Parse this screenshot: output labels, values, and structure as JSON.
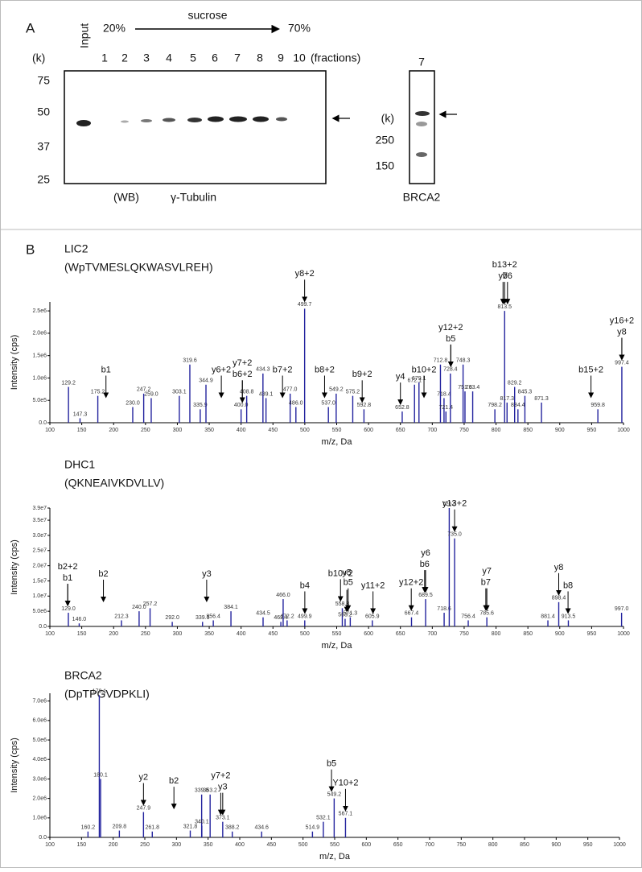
{
  "panel_a": {
    "label": "A",
    "input": "Input",
    "start": "20%",
    "gradient": "sucrose",
    "end": "70%",
    "unit": "(k)",
    "lanes": [
      "1",
      "2",
      "3",
      "4",
      "5",
      "6",
      "7",
      "8",
      "9",
      "10"
    ],
    "fractions": "(fractions)",
    "ladder": [
      "75",
      "50",
      "37",
      "25"
    ],
    "wb": "(WB)",
    "antibody": "γ-Tubulin",
    "brca2_lane": "7",
    "brca2_unit": "(k)",
    "brca2_ladder": [
      "250",
      "150"
    ],
    "brca2": "BRCA2"
  },
  "panel_b": {
    "label": "B",
    "x_label": "m/z, Da",
    "y_label": "Intensity (cps)",
    "spectra": [
      {
        "name": "LIC2",
        "sequence": "(WpTVMESLQKWASVLREH)",
        "color": "#23239e",
        "xlim": [
          100,
          1000
        ],
        "xticks": [
          100,
          150,
          200,
          250,
          300,
          350,
          400,
          450,
          500,
          550,
          600,
          650,
          700,
          750,
          800,
          850,
          900,
          950,
          1000
        ],
        "ylim": [
          0,
          2700000
        ],
        "yticks": [
          {
            "value": 0,
            "label": "0.0"
          },
          {
            "value": 500000,
            "label": "5.0e5"
          },
          {
            "value": 1000000,
            "label": "1.0e6"
          },
          {
            "value": 1500000,
            "label": "1.5e6"
          },
          {
            "value": 2000000,
            "label": "2.0e6"
          },
          {
            "value": 2500000,
            "label": "2.5e6"
          }
        ],
        "peaks": [
          {
            "mz": 129.2,
            "label": "129.2",
            "intensity": 800000
          },
          {
            "mz": 147.3,
            "label": "147.3",
            "intensity": 100000
          },
          {
            "mz": 175.2,
            "label": "175.2",
            "intensity": 600000
          },
          {
            "mz": 230.0,
            "label": "230.0",
            "intensity": 350000
          },
          {
            "mz": 247.2,
            "label": "247.2",
            "intensity": 650000
          },
          {
            "mz": 259.0,
            "label": "259.0",
            "intensity": 550000
          },
          {
            "mz": 303.1,
            "label": "303.1",
            "intensity": 600000
          },
          {
            "mz": 319.6,
            "label": "319.6",
            "intensity": 1300000
          },
          {
            "mz": 335.9,
            "label": "335.9",
            "intensity": 300000
          },
          {
            "mz": 344.9,
            "label": "344.9",
            "intensity": 850000
          },
          {
            "mz": 400.0,
            "label": "400.0",
            "intensity": 300000
          },
          {
            "mz": 408.8,
            "label": "408.8",
            "intensity": 600000
          },
          {
            "mz": 434.3,
            "label": "434.3",
            "intensity": 1100000
          },
          {
            "mz": 439.1,
            "label": "439.1",
            "intensity": 550000
          },
          {
            "mz": 477.0,
            "label": "477.0",
            "intensity": 650000
          },
          {
            "mz": 486.0,
            "label": "486.0",
            "intensity": 350000
          },
          {
            "mz": 499.7,
            "label": "499.7",
            "intensity": 2550000
          },
          {
            "mz": 537.0,
            "label": "537.0",
            "intensity": 350000
          },
          {
            "mz": 549.2,
            "label": "549.2",
            "intensity": 650000
          },
          {
            "mz": 575.2,
            "label": "575.2",
            "intensity": 600000
          },
          {
            "mz": 592.8,
            "label": "592.8",
            "intensity": 300000
          },
          {
            "mz": 652.8,
            "label": "652.8",
            "intensity": 250000
          },
          {
            "mz": 672.1,
            "label": "672.1",
            "intensity": 850000
          },
          {
            "mz": 679.1,
            "label": "679.1",
            "intensity": 900000
          },
          {
            "mz": 712.8,
            "label": "712.8",
            "intensity": 1300000
          },
          {
            "mz": 718.4,
            "label": "718.4",
            "intensity": 550000
          },
          {
            "mz": 721.4,
            "label": "721.4",
            "intensity": 250000
          },
          {
            "mz": 728.4,
            "label": "728.4",
            "intensity": 1100000
          },
          {
            "mz": 748.3,
            "label": "748.3",
            "intensity": 1300000
          },
          {
            "mz": 751.3,
            "label": "751.3",
            "intensity": 700000
          },
          {
            "mz": 763.4,
            "label": "763.4",
            "intensity": 700000
          },
          {
            "mz": 798.2,
            "label": "798.2",
            "intensity": 300000
          },
          {
            "mz": 813.5,
            "label": "813.5",
            "intensity": 2500000
          },
          {
            "mz": 817.3,
            "label": "817.3",
            "intensity": 450000
          },
          {
            "mz": 829.2,
            "label": "829.2",
            "intensity": 800000
          },
          {
            "mz": 834.4,
            "label": "834.4",
            "intensity": 300000
          },
          {
            "mz": 845.3,
            "label": "845.3",
            "intensity": 600000
          },
          {
            "mz": 871.3,
            "label": "871.3",
            "intensity": 450000
          },
          {
            "mz": 959.8,
            "label": "959.8",
            "intensity": 300000
          },
          {
            "mz": 997.4,
            "label": "997.4",
            "intensity": 1250000
          }
        ],
        "annotations": [
          {
            "label": "b1",
            "mz": 188
          },
          {
            "label": "y6+2",
            "mz": 369
          },
          {
            "label": "b6+2",
            "mz": 402
          },
          {
            "label": "y7+2",
            "mz": 402
          },
          {
            "label": "b7+2",
            "mz": 465
          },
          {
            "label": "y8+2",
            "mz": 499.7
          },
          {
            "label": "b8+2",
            "mz": 531
          },
          {
            "label": "y4",
            "mz": 650
          },
          {
            "label": "b9+2",
            "mz": 590
          },
          {
            "label": "b10+2",
            "mz": 687
          },
          {
            "label": "b5",
            "mz": 729
          },
          {
            "label": "y12+2",
            "mz": 729
          },
          {
            "label": "y7",
            "mz": 811
          },
          {
            "label": "b6",
            "mz": 818
          },
          {
            "label": "b13+2",
            "mz": 813.5
          },
          {
            "label": "b15+2",
            "mz": 949
          },
          {
            "label": "y8",
            "mz": 997.4
          },
          {
            "label": "y16+2",
            "mz": 997.4
          }
        ]
      },
      {
        "name": "DHC1",
        "sequence": "(QKNEAIVKDVLLV)",
        "color": "#23239e",
        "xlim": [
          100,
          1000
        ],
        "xticks": [
          100,
          150,
          200,
          250,
          300,
          350,
          400,
          450,
          500,
          550,
          600,
          650,
          700,
          750,
          800,
          850,
          900,
          950,
          1000
        ],
        "ylim": [
          0,
          39000000
        ],
        "yticks": [
          {
            "value": 0,
            "label": "0.0"
          },
          {
            "value": 5000000,
            "label": "5.0e6"
          },
          {
            "value": 10000000,
            "label": "1.0e7"
          },
          {
            "value": 15000000,
            "label": "1.5e7"
          },
          {
            "value": 20000000,
            "label": "2.0e7"
          },
          {
            "value": 25000000,
            "label": "2.5e7"
          },
          {
            "value": 30000000,
            "label": "3.0e7"
          },
          {
            "value": 35000000,
            "label": "3.5e7"
          },
          {
            "value": 39000000,
            "label": "3.9e7"
          }
        ],
        "peaks": [
          {
            "mz": 129.0,
            "label": "129.0",
            "intensity": 4500000
          },
          {
            "mz": 146.0,
            "label": "146.0",
            "intensity": 1000000
          },
          {
            "mz": 212.3,
            "label": "212.3",
            "intensity": 2000000
          },
          {
            "mz": 240.0,
            "label": "240.0",
            "intensity": 5000000
          },
          {
            "mz": 257.2,
            "label": "257.2",
            "intensity": 6000000
          },
          {
            "mz": 292.0,
            "label": "292.0",
            "intensity": 1500000
          },
          {
            "mz": 339.5,
            "label": "339.5",
            "intensity": 1500000
          },
          {
            "mz": 356.4,
            "label": "356.4",
            "intensity": 2000000
          },
          {
            "mz": 384.1,
            "label": "384.1",
            "intensity": 5000000
          },
          {
            "mz": 434.5,
            "label": "434.5",
            "intensity": 3000000
          },
          {
            "mz": 462.4,
            "label": "462.4",
            "intensity": 1500000
          },
          {
            "mz": 466.0,
            "label": "466.0",
            "intensity": 9000000
          },
          {
            "mz": 472.2,
            "label": "472.2",
            "intensity": 2000000
          },
          {
            "mz": 499.9,
            "label": "499.9",
            "intensity": 2000000
          },
          {
            "mz": 558.8,
            "label": "558.8",
            "intensity": 6000000
          },
          {
            "mz": 563.2,
            "label": "563.2",
            "intensity": 2500000
          },
          {
            "mz": 571.3,
            "label": "571.3",
            "intensity": 3000000
          },
          {
            "mz": 605.9,
            "label": "605.9",
            "intensity": 2000000
          },
          {
            "mz": 667.4,
            "label": "667.4",
            "intensity": 3000000
          },
          {
            "mz": 689.5,
            "label": "689.5",
            "intensity": 9000000
          },
          {
            "mz": 718.6,
            "label": "718.6",
            "intensity": 4500000
          },
          {
            "mz": 726.6,
            "label": "726.6",
            "intensity": 39000000
          },
          {
            "mz": 735.0,
            "label": "735.0",
            "intensity": 29000000
          },
          {
            "mz": 756.4,
            "label": "756.4",
            "intensity": 2000000
          },
          {
            "mz": 785.6,
            "label": "785.6",
            "intensity": 3000000
          },
          {
            "mz": 881.4,
            "label": "881.4",
            "intensity": 2000000
          },
          {
            "mz": 898.4,
            "label": "898.4",
            "intensity": 8000000
          },
          {
            "mz": 913.5,
            "label": "913.5",
            "intensity": 2000000
          },
          {
            "mz": 997.0,
            "label": "997.0",
            "intensity": 4500000
          }
        ],
        "annotations": [
          {
            "label": "b1",
            "mz": 128
          },
          {
            "label": "b2+2",
            "mz": 128
          },
          {
            "label": "b2",
            "mz": 184
          },
          {
            "label": "y3",
            "mz": 346
          },
          {
            "label": "b4",
            "mz": 500
          },
          {
            "label": "b10+2",
            "mz": 556
          },
          {
            "label": "b5",
            "mz": 568
          },
          {
            "label": "y5",
            "mz": 566
          },
          {
            "label": "y11+2",
            "mz": 607
          },
          {
            "label": "y12+2",
            "mz": 667
          },
          {
            "label": "b6",
            "mz": 688
          },
          {
            "label": "y6",
            "mz": 689.5
          },
          {
            "label": "y13+2",
            "mz": 735
          },
          {
            "label": "b7",
            "mz": 784
          },
          {
            "label": "y7",
            "mz": 785.6
          },
          {
            "label": "y8",
            "mz": 898.4
          },
          {
            "label": "b8",
            "mz": 913
          }
        ]
      },
      {
        "name": "BRCA2",
        "sequence": "(DpTPGVDPKLI)",
        "color": "#23239e",
        "xlim": [
          100,
          1000
        ],
        "xticks": [
          100,
          150,
          200,
          250,
          300,
          350,
          400,
          450,
          500,
          550,
          600,
          650,
          700,
          750,
          800,
          850,
          900,
          950,
          1000
        ],
        "ylim": [
          0,
          7400000
        ],
        "yticks": [
          {
            "value": 0,
            "label": "0.0"
          },
          {
            "value": 1000000,
            "label": "1.0e6"
          },
          {
            "value": 2000000,
            "label": "2.0e6"
          },
          {
            "value": 3000000,
            "label": "3.0e6"
          },
          {
            "value": 4000000,
            "label": "4.0e6"
          },
          {
            "value": 5000000,
            "label": "5.0e6"
          },
          {
            "value": 6000000,
            "label": "6.0e6"
          },
          {
            "value": 7000000,
            "label": "7.0e6"
          }
        ],
        "peaks": [
          {
            "mz": 160.2,
            "label": "160.2",
            "intensity": 300000
          },
          {
            "mz": 178.1,
            "label": "178.1",
            "intensity": 7300000
          },
          {
            "mz": 180.1,
            "label": "180.1",
            "intensity": 3000000
          },
          {
            "mz": 209.8,
            "label": "209.8",
            "intensity": 350000
          },
          {
            "mz": 247.9,
            "label": "247.9",
            "intensity": 1300000
          },
          {
            "mz": 261.8,
            "label": "261.8",
            "intensity": 300000
          },
          {
            "mz": 321.8,
            "label": "321.8",
            "intensity": 350000
          },
          {
            "mz": 339.8,
            "label": "339.8",
            "intensity": 2200000
          },
          {
            "mz": 340.1,
            "label": "340.1",
            "intensity": 600000
          },
          {
            "mz": 353.2,
            "label": "353.2",
            "intensity": 2200000
          },
          {
            "mz": 373.1,
            "label": "373.1",
            "intensity": 800000
          },
          {
            "mz": 388.2,
            "label": "388.2",
            "intensity": 300000
          },
          {
            "mz": 434.6,
            "label": "434.6",
            "intensity": 300000
          },
          {
            "mz": 514.9,
            "label": "514.9",
            "intensity": 300000
          },
          {
            "mz": 532.1,
            "label": "532.1",
            "intensity": 800000
          },
          {
            "mz": 549.2,
            "label": "549.2",
            "intensity": 2000000
          },
          {
            "mz": 567.1,
            "label": "567.1",
            "intensity": 1000000
          }
        ],
        "annotations": [
          {
            "label": "y2",
            "mz": 247.9
          },
          {
            "label": "b2",
            "mz": 296
          },
          {
            "label": "y3",
            "mz": 373.1
          },
          {
            "label": "y7+2",
            "mz": 370
          },
          {
            "label": "b5",
            "mz": 545
          },
          {
            "label": "Y10+2",
            "mz": 567.1
          }
        ]
      }
    ]
  }
}
